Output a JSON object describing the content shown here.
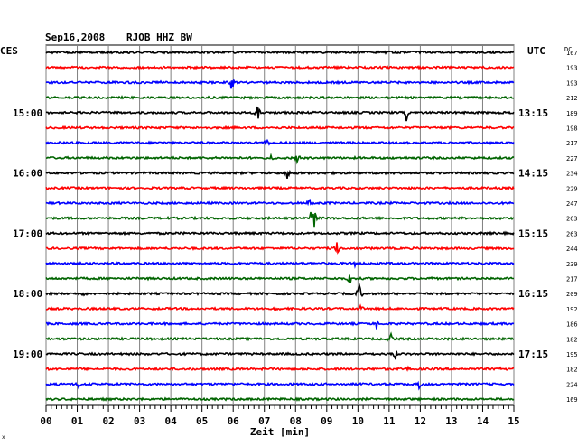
{
  "header": {
    "date": "Sep16,2008",
    "station": "RJOB HHZ BW",
    "left_zone": "CES",
    "right_zone": "UTC",
    "dc_label": "DC"
  },
  "footer": {
    "xlabel": "Zeit [min]",
    "corner_mark": "x"
  },
  "chart_data": {
    "type": "line",
    "title": "Sep16,2008  RJOB HHZ BW",
    "xlabel": "Zeit [min]",
    "x_ticks": [
      "00",
      "01",
      "02",
      "03",
      "04",
      "05",
      "06",
      "07",
      "08",
      "09",
      "10",
      "11",
      "12",
      "13",
      "14",
      "15"
    ],
    "xlim": [
      0,
      15
    ],
    "grid": true,
    "trace_colors": [
      "#000000",
      "#ff0000",
      "#0000ff",
      "#006400"
    ],
    "left_time_labels": [
      {
        "row": 4,
        "label": "15:00"
      },
      {
        "row": 8,
        "label": "16:00"
      },
      {
        "row": 12,
        "label": "17:00"
      },
      {
        "row": 16,
        "label": "18:00"
      },
      {
        "row": 20,
        "label": "19:00"
      }
    ],
    "right_time_labels": [
      {
        "row": 4,
        "label": "13:15"
      },
      {
        "row": 8,
        "label": "14:15"
      },
      {
        "row": 12,
        "label": "15:15"
      },
      {
        "row": 16,
        "label": "16:15"
      },
      {
        "row": 20,
        "label": "17:15"
      }
    ],
    "dc_offsets": [
      "167",
      "193",
      "193",
      "212",
      "189",
      "198",
      "217",
      "227",
      "234",
      "229",
      "247",
      "263",
      "263",
      "244",
      "239",
      "217",
      "209",
      "192",
      "186",
      "182",
      "195",
      "182",
      "224",
      "169"
    ],
    "events": [
      {
        "row": 2,
        "minute": 3.7,
        "amplitude": 2
      },
      {
        "row": 2,
        "minute": 5.95,
        "amplitude": 10
      },
      {
        "row": 4,
        "minute": 6.8,
        "amplitude": 12
      },
      {
        "row": 4,
        "minute": 11.55,
        "amplitude": 10
      },
      {
        "row": 6,
        "minute": 7.05,
        "amplitude": 8
      },
      {
        "row": 7,
        "minute": 7.25,
        "amplitude": 7
      },
      {
        "row": 7,
        "minute": 8.05,
        "amplitude": 4
      },
      {
        "row": 8,
        "minute": 7.75,
        "amplitude": 14
      },
      {
        "row": 10,
        "minute": 8.45,
        "amplitude": 6
      },
      {
        "row": 11,
        "minute": 8.5,
        "amplitude": 10
      },
      {
        "row": 11,
        "minute": 8.6,
        "amplitude": 12
      },
      {
        "row": 13,
        "minute": 9.35,
        "amplitude": 16
      },
      {
        "row": 14,
        "minute": 9.9,
        "amplitude": 4
      },
      {
        "row": 15,
        "minute": 9.75,
        "amplitude": 10
      },
      {
        "row": 15,
        "minute": 12.3,
        "amplitude": 4
      },
      {
        "row": 16,
        "minute": 1.2,
        "amplitude": 3
      },
      {
        "row": 16,
        "minute": 10.05,
        "amplitude": 14
      },
      {
        "row": 17,
        "minute": 3.4,
        "amplitude": 3
      },
      {
        "row": 17,
        "minute": 7.35,
        "amplitude": 3
      },
      {
        "row": 17,
        "minute": 10.15,
        "amplitude": 10
      },
      {
        "row": 18,
        "minute": 10.6,
        "amplitude": 6
      },
      {
        "row": 19,
        "minute": 11.05,
        "amplitude": 12
      },
      {
        "row": 20,
        "minute": 11.2,
        "amplitude": 8
      },
      {
        "row": 21,
        "minute": 11.6,
        "amplitude": 6
      },
      {
        "row": 21,
        "minute": 14.6,
        "amplitude": 3
      },
      {
        "row": 22,
        "minute": 1.05,
        "amplitude": 6
      },
      {
        "row": 22,
        "minute": 11.95,
        "amplitude": 10
      }
    ]
  }
}
